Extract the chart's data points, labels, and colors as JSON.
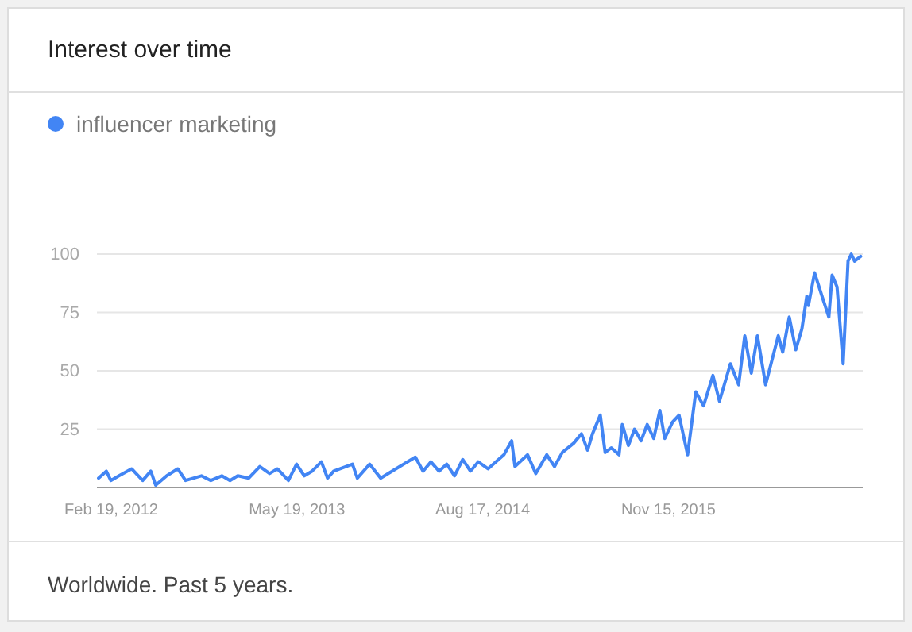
{
  "chart_data": {
    "type": "line",
    "title": "Interest over time",
    "legend": "top left",
    "grid": "y",
    "line_style": "solid",
    "marker": "none",
    "annotations": [
      "Worldwide. Past 5 years."
    ],
    "xlim": [
      "2012-01-15",
      "2017-03-05"
    ],
    "xticks": [
      {
        "value": "2012-02-19",
        "label": "Feb 19, 2012"
      },
      {
        "value": "2013-05-19",
        "label": "May 19, 2013"
      },
      {
        "value": "2014-08-17",
        "label": "Aug 17, 2014"
      },
      {
        "value": "2015-11-15",
        "label": "Nov 15, 2015"
      }
    ],
    "ylim": [
      0,
      100
    ],
    "yticks": [
      25,
      50,
      75,
      100
    ],
    "series": [
      {
        "name": "influencer marketing",
        "color": "#4285f4",
        "x": [
          "2012-01-19",
          "2012-02-07",
          "2012-02-18",
          "2012-03-09",
          "2012-04-09",
          "2012-05-06",
          "2012-05-26",
          "2012-06-07",
          "2012-07-04",
          "2012-07-31",
          "2012-08-19",
          "2012-09-27",
          "2012-10-20",
          "2012-11-16",
          "2012-12-06",
          "2012-12-25",
          "2013-01-21",
          "2013-02-17",
          "2013-03-13",
          "2013-04-01",
          "2013-04-28",
          "2013-05-18",
          "2013-06-06",
          "2013-06-25",
          "2013-07-18",
          "2013-08-02",
          "2013-08-17",
          "2013-10-02",
          "2013-10-14",
          "2013-11-13",
          "2013-12-10",
          "2014-01-26",
          "2014-03-05",
          "2014-03-24",
          "2014-04-12",
          "2014-05-02",
          "2014-05-21",
          "2014-06-09",
          "2014-06-29",
          "2014-07-18",
          "2014-08-06",
          "2014-08-30",
          "2014-10-08",
          "2014-10-27",
          "2014-11-04",
          "2014-12-05",
          "2014-12-25",
          "2015-01-21",
          "2015-02-09",
          "2015-02-28",
          "2015-03-28",
          "2015-04-16",
          "2015-05-01",
          "2015-05-13",
          "2015-06-01",
          "2015-06-13",
          "2015-06-28",
          "2015-07-17",
          "2015-07-25",
          "2015-08-09",
          "2015-08-24",
          "2015-09-09",
          "2015-09-24",
          "2015-10-10",
          "2015-10-25",
          "2015-11-06",
          "2015-11-25",
          "2015-12-11",
          "2016-01-01",
          "2016-01-21",
          "2016-02-09",
          "2016-03-03",
          "2016-03-19",
          "2016-04-15",
          "2016-05-05",
          "2016-05-20",
          "2016-06-05",
          "2016-06-20",
          "2016-07-10",
          "2016-08-10",
          "2016-08-21",
          "2016-09-06",
          "2016-09-22",
          "2016-10-07",
          "2016-10-19",
          "2016-10-23",
          "2016-11-07",
          "2016-11-27",
          "2016-12-12",
          "2016-12-20",
          "2017-01-01",
          "2017-01-16",
          "2017-01-28",
          "2017-02-05",
          "2017-02-13",
          "2017-02-28"
        ],
        "values": [
          4,
          7,
          3,
          5,
          8,
          3,
          7,
          1,
          5,
          8,
          3,
          5,
          3,
          5,
          3,
          5,
          4,
          9,
          6,
          8,
          3,
          10,
          5,
          7,
          11,
          4,
          7,
          10,
          4,
          10,
          4,
          9,
          13,
          7,
          11,
          7,
          10,
          5,
          12,
          7,
          11,
          8,
          14,
          20,
          9,
          14,
          6,
          14,
          9,
          15,
          19,
          23,
          16,
          23,
          31,
          15,
          17,
          14,
          27,
          18,
          25,
          20,
          27,
          21,
          33,
          21,
          28,
          31,
          14,
          41,
          35,
          48,
          37,
          53,
          44,
          65,
          49,
          65,
          44,
          65,
          58,
          73,
          59,
          68,
          82,
          78,
          92,
          81,
          73,
          91,
          86,
          53,
          97,
          100,
          97,
          99
        ]
      }
    ]
  }
}
